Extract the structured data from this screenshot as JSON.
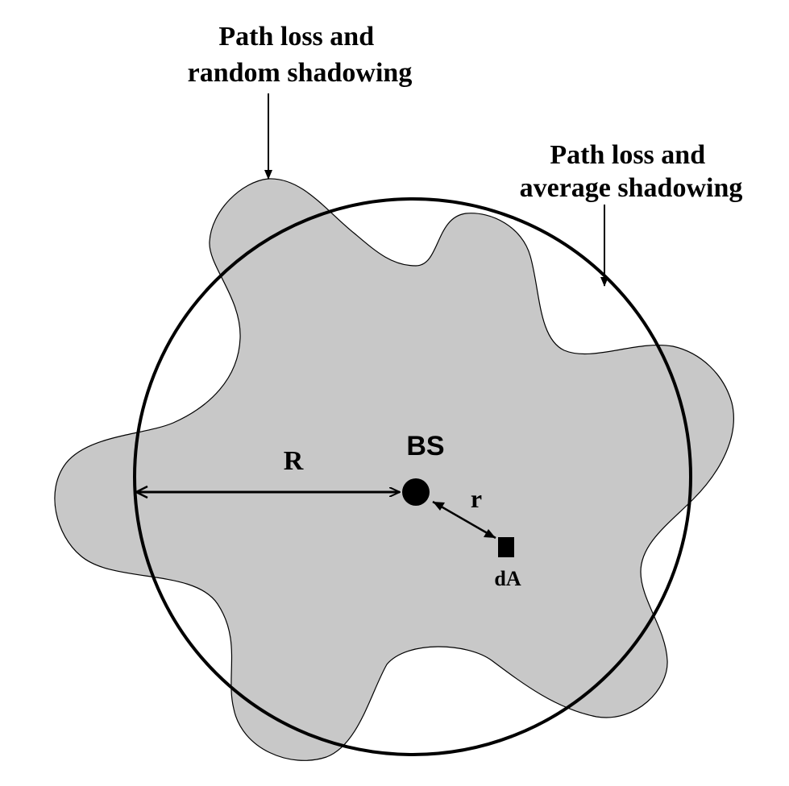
{
  "labels": {
    "random_shadowing_line1": "Path loss and",
    "random_shadowing_line2": "random shadowing",
    "average_shadowing_line1": "Path loss and",
    "average_shadowing_line2": "average shadowing",
    "radius": "R",
    "base_station": "BS",
    "distance": "r",
    "area_element": "dA"
  },
  "colors": {
    "shadow_fill": "#c8c8c8",
    "stroke": "#000000",
    "background": "#ffffff"
  }
}
